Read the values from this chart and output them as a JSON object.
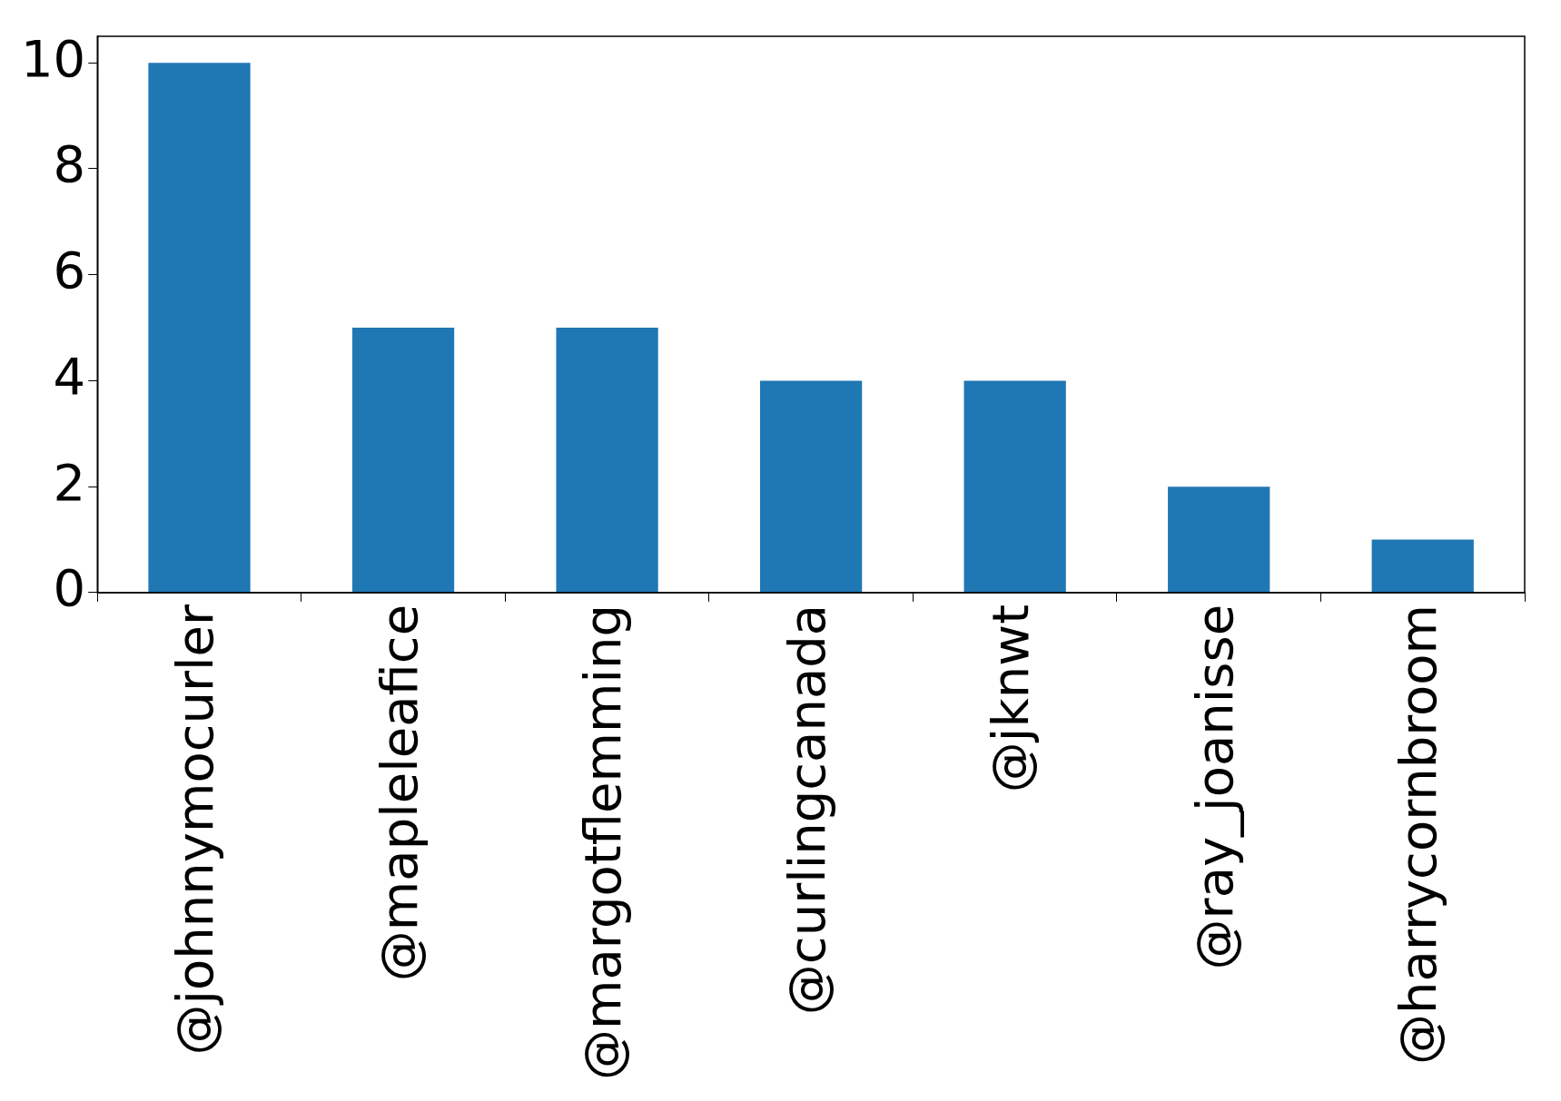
{
  "chart_data": {
    "type": "bar",
    "categories": [
      "@johnnymocurler",
      "@mapleleafice",
      "@margotflemming",
      "@curlingcanada",
      "@jknwt",
      "@ray_joanisse",
      "@harrycornbroom"
    ],
    "values": [
      10,
      5,
      5,
      4,
      4,
      2,
      1
    ],
    "color": "#1f77b4",
    "ylim": [
      0,
      10.5
    ],
    "yticks": [
      0,
      2,
      4,
      6,
      8,
      10
    ],
    "grid": false,
    "legend": false
  }
}
